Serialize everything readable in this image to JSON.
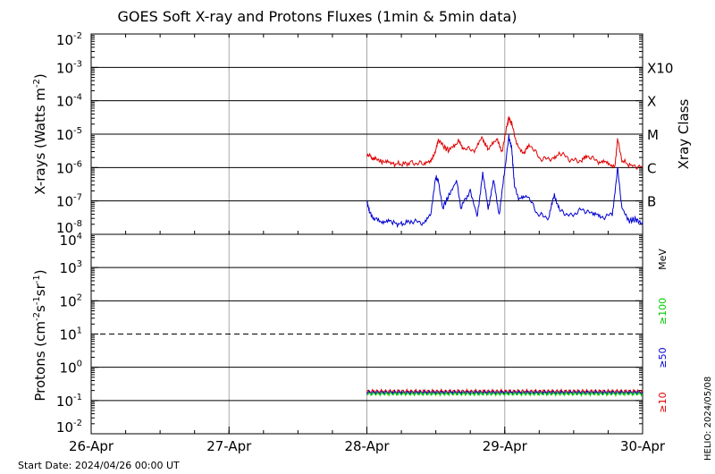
{
  "chart_data": [
    {
      "type": "line",
      "title": "GOES Soft X-ray and Protons Fluxes   (1min & 5min data)",
      "ylabel_main": "X-rays (Watts m",
      "ylabel_sup": "-2",
      "ylabel_close": ")",
      "yscale": "log",
      "ylim_exp": [
        -8,
        -2
      ],
      "y_ticks": [
        {
          "base": "10",
          "exp": "-8"
        },
        {
          "base": "10",
          "exp": "-7"
        },
        {
          "base": "10",
          "exp": "-6"
        },
        {
          "base": "10",
          "exp": "-5"
        },
        {
          "base": "10",
          "exp": "-4"
        },
        {
          "base": "10",
          "exp": "-3"
        },
        {
          "base": "10",
          "exp": "-2"
        }
      ],
      "right_axis_title": "Xray Class",
      "right_labels": [
        {
          "text": "B",
          "exp": -7
        },
        {
          "text": "C",
          "exp": -6
        },
        {
          "text": "M",
          "exp": -5
        },
        {
          "text": "X",
          "exp": -4
        },
        {
          "text": "X10",
          "exp": -3
        }
      ],
      "x_range_days": [
        0,
        4
      ],
      "series": [
        {
          "color": "#e00000",
          "points": [
            [
              2.0,
              -5.62
            ],
            [
              2.03,
              -5.68
            ],
            [
              2.07,
              -5.75
            ],
            [
              2.12,
              -5.85
            ],
            [
              2.18,
              -5.88
            ],
            [
              2.25,
              -5.9
            ],
            [
              2.32,
              -5.86
            ],
            [
              2.4,
              -5.88
            ],
            [
              2.46,
              -5.87
            ],
            [
              2.5,
              -5.45
            ],
            [
              2.52,
              -5.15
            ],
            [
              2.55,
              -5.35
            ],
            [
              2.6,
              -5.5
            ],
            [
              2.66,
              -5.2
            ],
            [
              2.7,
              -5.42
            ],
            [
              2.78,
              -5.48
            ],
            [
              2.84,
              -5.12
            ],
            [
              2.88,
              -5.5
            ],
            [
              2.94,
              -5.15
            ],
            [
              2.98,
              -5.5
            ],
            [
              3.02,
              -4.7
            ],
            [
              3.03,
              -4.5
            ],
            [
              3.05,
              -4.7
            ],
            [
              3.08,
              -5.2
            ],
            [
              3.14,
              -5.6
            ],
            [
              3.18,
              -5.3
            ],
            [
              3.26,
              -5.75
            ],
            [
              3.34,
              -5.72
            ],
            [
              3.4,
              -5.55
            ],
            [
              3.48,
              -5.78
            ],
            [
              3.56,
              -5.8
            ],
            [
              3.6,
              -5.65
            ],
            [
              3.68,
              -5.82
            ],
            [
              3.74,
              -5.88
            ],
            [
              3.8,
              -5.92
            ],
            [
              3.82,
              -5.1
            ],
            [
              3.85,
              -5.8
            ],
            [
              3.92,
              -5.95
            ],
            [
              4.0,
              -5.98
            ]
          ]
        },
        {
          "color": "#0000d0",
          "points": [
            [
              2.0,
              -7.0
            ],
            [
              2.02,
              -7.35
            ],
            [
              2.06,
              -7.55
            ],
            [
              2.12,
              -7.6
            ],
            [
              2.18,
              -7.65
            ],
            [
              2.25,
              -7.7
            ],
            [
              2.32,
              -7.6
            ],
            [
              2.4,
              -7.65
            ],
            [
              2.46,
              -7.45
            ],
            [
              2.5,
              -6.3
            ],
            [
              2.52,
              -6.4
            ],
            [
              2.55,
              -7.2
            ],
            [
              2.6,
              -6.8
            ],
            [
              2.65,
              -6.4
            ],
            [
              2.68,
              -7.2
            ],
            [
              2.75,
              -6.7
            ],
            [
              2.8,
              -7.45
            ],
            [
              2.84,
              -6.2
            ],
            [
              2.88,
              -7.2
            ],
            [
              2.92,
              -6.4
            ],
            [
              2.96,
              -7.4
            ],
            [
              3.0,
              -6.1
            ],
            [
              3.03,
              -5.1
            ],
            [
              3.05,
              -5.4
            ],
            [
              3.07,
              -6.5
            ],
            [
              3.1,
              -7.0
            ],
            [
              3.16,
              -6.8
            ],
            [
              3.24,
              -7.4
            ],
            [
              3.32,
              -7.5
            ],
            [
              3.36,
              -6.8
            ],
            [
              3.4,
              -7.3
            ],
            [
              3.48,
              -7.45
            ],
            [
              3.56,
              -7.25
            ],
            [
              3.64,
              -7.4
            ],
            [
              3.7,
              -7.5
            ],
            [
              3.78,
              -7.4
            ],
            [
              3.82,
              -6.0
            ],
            [
              3.85,
              -7.2
            ],
            [
              3.9,
              -7.6
            ],
            [
              3.95,
              -7.55
            ],
            [
              4.0,
              -7.7
            ]
          ]
        }
      ]
    },
    {
      "type": "line",
      "ylabel_main": "Protons (cm",
      "ylabel_sup1": "-2",
      "ylabel_mid": "s",
      "ylabel_sup2": "-1",
      "ylabel_mid2": "sr",
      "ylabel_sup3": "-1",
      "ylabel_close": ")",
      "yscale": "log",
      "ylim_exp": [
        -2,
        4
      ],
      "y_ticks": [
        {
          "base": "10",
          "exp": "-2"
        },
        {
          "base": "10",
          "exp": "-1"
        },
        {
          "base": "10",
          "exp": "0"
        },
        {
          "base": "10",
          "exp": "1"
        },
        {
          "base": "10",
          "exp": "2"
        },
        {
          "base": "10",
          "exp": "3"
        },
        {
          "base": "10",
          "exp": "4"
        }
      ],
      "dashed_level_exp": 1,
      "right_labels": [
        {
          "text": "MeV",
          "color": "#000000"
        },
        {
          "text": "≥100",
          "color": "#00cc00"
        },
        {
          "text": "≥50",
          "color": "#0000d0"
        },
        {
          "text": "≥10",
          "color": "#e00000"
        }
      ],
      "x_range_days": [
        0,
        4
      ],
      "series": [
        {
          "name": "≥10",
          "color": "#e00000",
          "level_exp": -0.72
        },
        {
          "name": "≥50",
          "color": "#0000d0",
          "level_exp": -0.76
        },
        {
          "name": "≥100",
          "color": "#00cc00",
          "level_exp": -0.8
        }
      ],
      "data_start_day": 2.0
    }
  ],
  "x_tick_labels": [
    "26-Apr",
    "27-Apr",
    "28-Apr",
    "29-Apr",
    "30-Apr"
  ],
  "start_date": "Start Date: 2024/04/26 00:00 UT",
  "side_stamp": "HELIO: 2024/05/08"
}
